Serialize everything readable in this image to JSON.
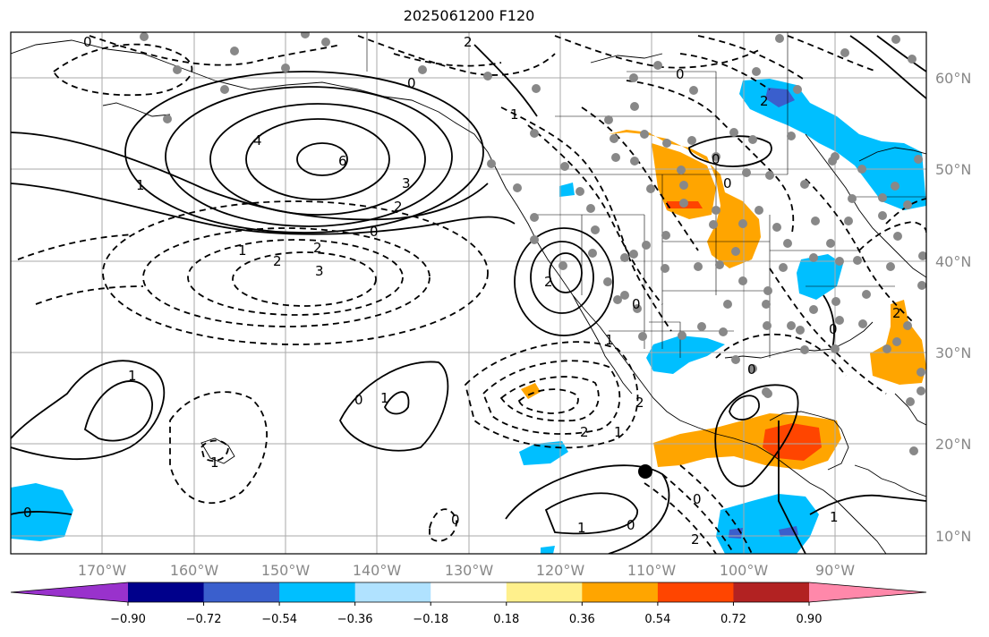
{
  "title": "2025061200 F120",
  "map": {
    "lon_ticks": [
      "170°W",
      "160°W",
      "150°W",
      "140°W",
      "130°W",
      "120°W",
      "110°W",
      "100°W",
      "90°W"
    ],
    "lat_ticks": [
      "60°N",
      "50°N",
      "40°N",
      "30°N",
      "20°N",
      "10°N"
    ],
    "contour_labels": [
      "0",
      "2",
      "6",
      "4",
      "1",
      "3",
      "2",
      "0",
      "1",
      "2",
      "3",
      "2",
      "1",
      "0",
      "2",
      "0",
      "0",
      "1",
      "1",
      "1",
      "2",
      "0",
      "1",
      "0",
      "0",
      "0",
      "2",
      "1",
      "2",
      "0",
      "1",
      "0",
      "1",
      "0",
      "2",
      "2",
      "0",
      "0"
    ]
  },
  "colorbar": {
    "tick_labels": [
      "−0.90",
      "−0.72",
      "−0.54",
      "−0.36",
      "−0.18",
      "0.18",
      "0.36",
      "0.54",
      "0.72",
      "0.90"
    ],
    "colors": [
      "#9932cc",
      "#00008b",
      "#3a5fcd",
      "#00bfff",
      "#b0e2ff",
      "#ffffff",
      "#fff08c",
      "#ffa500",
      "#ff4500",
      "#b22222",
      "#ff88aa"
    ]
  }
}
